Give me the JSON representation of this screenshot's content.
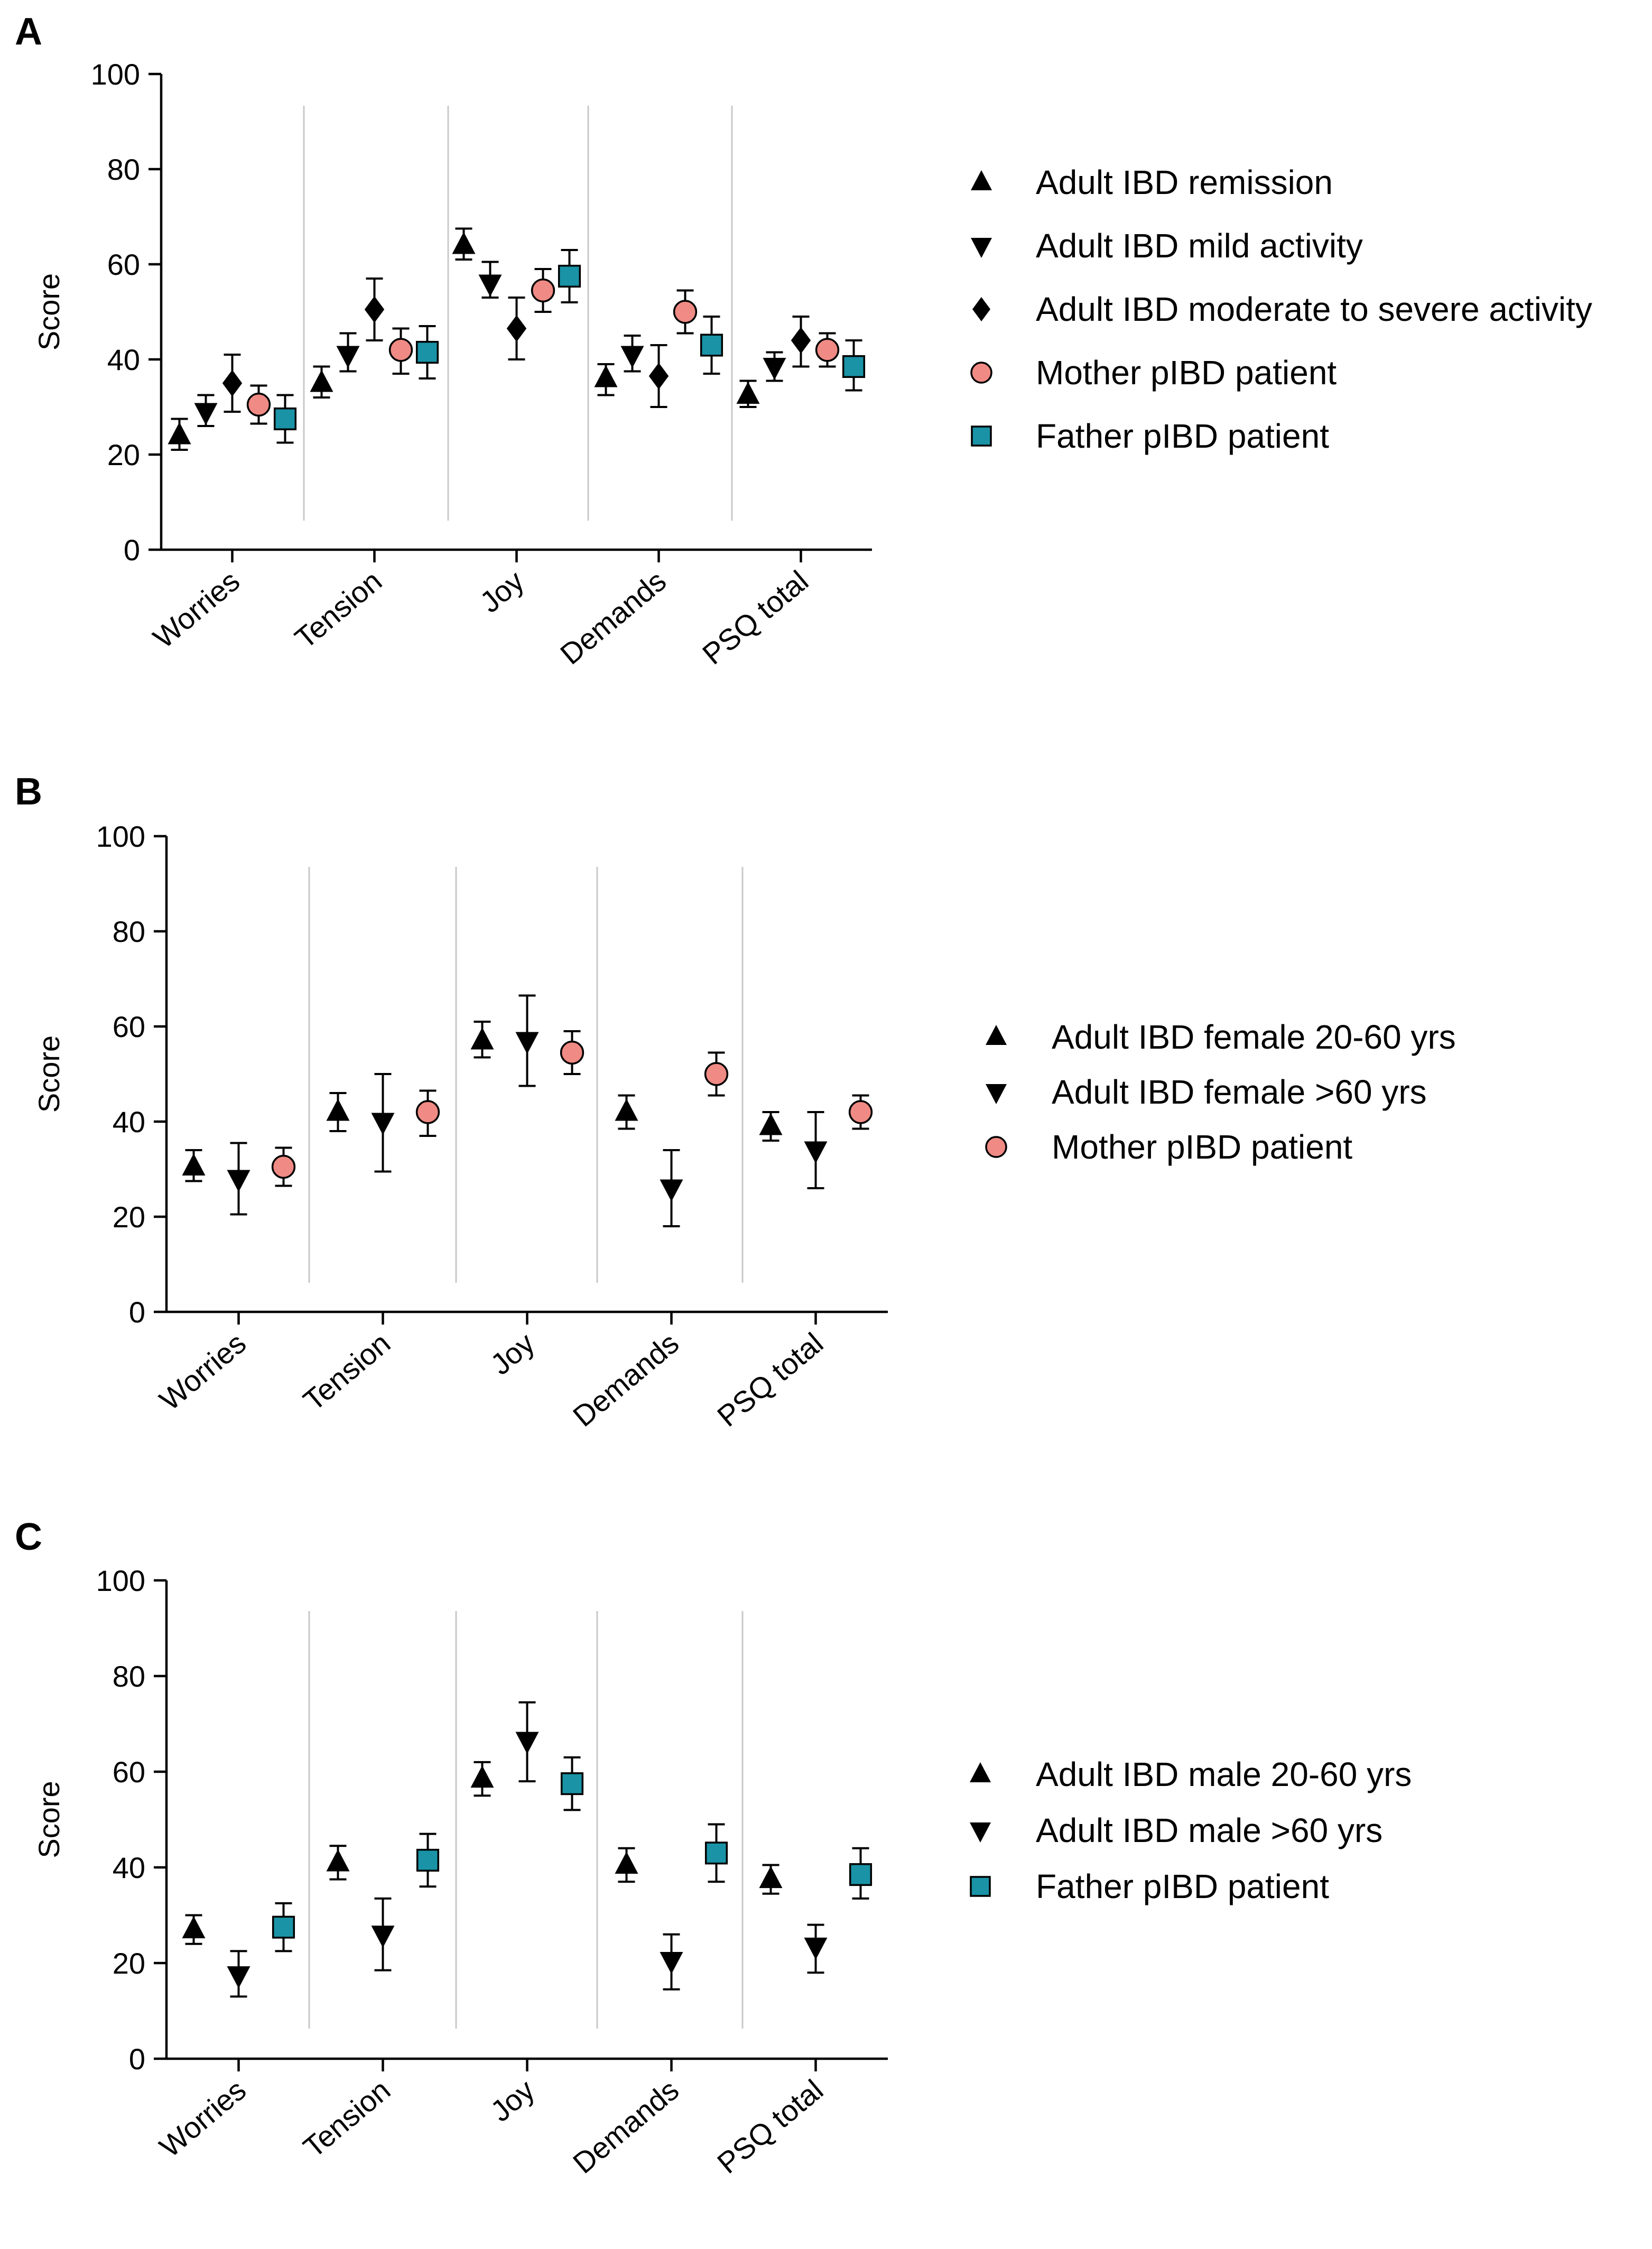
{
  "colors": {
    "mother": "#f08a84",
    "father": "#1a93a6",
    "black": "#000000",
    "divider": "#c8c8c8"
  },
  "y_axis_label": "Score",
  "chart_data": [
    {
      "panel": "A",
      "type": "scatter",
      "categories": [
        "Worries",
        "Tension",
        "Joy",
        "Demands",
        "PSQ total"
      ],
      "ylabel": "Score",
      "ylim": [
        0,
        100
      ],
      "yticks": [
        0,
        20,
        40,
        60,
        80,
        100
      ],
      "grid": false,
      "legend_position": "right",
      "series": [
        {
          "name": "Adult IBD remission",
          "marker": "triangle-up",
          "color": "#000000",
          "values": [
            24,
            35,
            64,
            36,
            32.5
          ],
          "err_low": [
            21,
            32,
            61,
            32.5,
            30
          ],
          "err_high": [
            27.5,
            38.5,
            67.5,
            39,
            35.5
          ]
        },
        {
          "name": "Adult IBD mild activity",
          "marker": "triangle-down",
          "color": "#000000",
          "values": [
            29,
            41,
            56,
            41,
            38.5
          ],
          "err_low": [
            26,
            37.5,
            53,
            37.5,
            35.5
          ],
          "err_high": [
            32.5,
            45.5,
            60.5,
            45,
            41.5
          ]
        },
        {
          "name": "Adult IBD moderate to severe activity",
          "marker": "diamond",
          "color": "#000000",
          "values": [
            35,
            50.5,
            46.5,
            36.5,
            44
          ],
          "err_low": [
            29,
            44,
            40,
            30,
            38.5
          ],
          "err_high": [
            41,
            57,
            53,
            43,
            49
          ]
        },
        {
          "name": "Mother pIBD patient",
          "marker": "circle",
          "color": "#f08a84",
          "values": [
            30.5,
            42,
            54.5,
            50,
            42
          ],
          "err_low": [
            26.5,
            37,
            50,
            45.5,
            38.5
          ],
          "err_high": [
            34.5,
            46.5,
            59,
            54.5,
            45.5
          ]
        },
        {
          "name": "Father pIBD patient",
          "marker": "square",
          "color": "#1a93a6",
          "values": [
            27.5,
            41.5,
            57.5,
            43,
            38.5
          ],
          "err_low": [
            22.5,
            36,
            52,
            37,
            33.5
          ],
          "err_high": [
            32.5,
            47,
            63,
            49,
            44
          ]
        }
      ]
    },
    {
      "panel": "B",
      "type": "scatter",
      "categories": [
        "Worries",
        "Tension",
        "Joy",
        "Demands",
        "PSQ total"
      ],
      "ylabel": "Score",
      "ylim": [
        0,
        100
      ],
      "yticks": [
        0,
        20,
        40,
        60,
        80,
        100
      ],
      "grid": false,
      "legend_position": "right",
      "series": [
        {
          "name": "Adult IBD female 20-60 yrs",
          "marker": "triangle-up",
          "color": "#000000",
          "values": [
            30.5,
            42,
            57,
            42,
            39
          ],
          "err_low": [
            27.5,
            38,
            53.5,
            38.5,
            36
          ],
          "err_high": [
            34,
            46,
            61,
            45.5,
            42
          ]
        },
        {
          "name": "Adult IBD female >60 yrs",
          "marker": "triangle-down",
          "color": "#000000",
          "values": [
            28,
            40,
            57,
            26,
            34
          ],
          "err_low": [
            20.5,
            29.5,
            47.5,
            18,
            26
          ],
          "err_high": [
            35.5,
            50,
            66.5,
            34,
            42
          ]
        },
        {
          "name": "Mother pIBD patient",
          "marker": "circle",
          "color": "#f08a84",
          "values": [
            30.5,
            42,
            54.5,
            50,
            42
          ],
          "err_low": [
            26.5,
            37,
            50,
            45.5,
            38.5
          ],
          "err_high": [
            34.5,
            46.5,
            59,
            54.5,
            45.5
          ]
        }
      ]
    },
    {
      "panel": "C",
      "type": "scatter",
      "categories": [
        "Worries",
        "Tension",
        "Joy",
        "Demands",
        "PSQ total"
      ],
      "ylabel": "Score",
      "ylim": [
        0,
        100
      ],
      "yticks": [
        0,
        20,
        40,
        60,
        80,
        100
      ],
      "grid": false,
      "legend_position": "right",
      "series": [
        {
          "name": "Adult IBD male 20-60 yrs",
          "marker": "triangle-up",
          "color": "#000000",
          "values": [
            27,
            41,
            58.5,
            40.5,
            37.5
          ],
          "err_low": [
            24,
            37.5,
            55,
            37,
            34.5
          ],
          "err_high": [
            30,
            44.5,
            62,
            44,
            40.5
          ]
        },
        {
          "name": "Adult IBD male >60 yrs",
          "marker": "triangle-down",
          "color": "#000000",
          "values": [
            17.5,
            26,
            66.5,
            20.5,
            23.5
          ],
          "err_low": [
            13,
            18.5,
            58,
            14.5,
            18
          ],
          "err_high": [
            22.5,
            33.5,
            74.5,
            26,
            28
          ]
        },
        {
          "name": "Father pIBD patient",
          "marker": "square",
          "color": "#1a93a6",
          "values": [
            27.5,
            41.5,
            57.5,
            43,
            38.5
          ],
          "err_low": [
            22.5,
            36,
            52,
            37,
            33.5
          ],
          "err_high": [
            32.5,
            47,
            63,
            49,
            44
          ]
        }
      ]
    }
  ]
}
